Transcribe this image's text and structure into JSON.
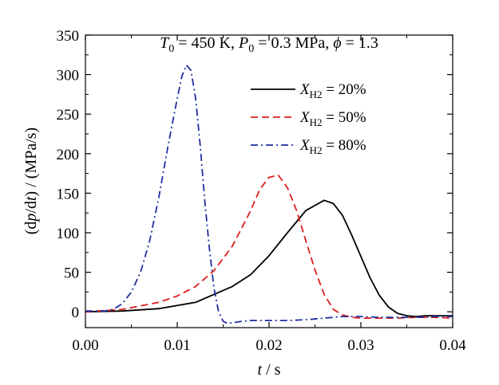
{
  "chart_data": {
    "type": "line",
    "title_parts": {
      "t_sym": "T",
      "t_sub": "0",
      "t_rest": " = 450 K, ",
      "p_sym": "P",
      "p_sub": "0",
      "p_rest": " = 0.3 MPa, ",
      "phi_sym": "ϕ",
      "phi_rest": " = 1.3"
    },
    "xlabel_parts": {
      "sym": "t",
      "rest": " / s"
    },
    "ylabel_parts": {
      "pre": "(d",
      "sym1": "p",
      "mid": "/d",
      "sym2": "t",
      "rest": ") / (MPa/s)"
    },
    "xlim": [
      0,
      0.04
    ],
    "ylim": [
      -20,
      350
    ],
    "xticks": [
      "0.00",
      "0.01",
      "0.02",
      "0.03",
      "0.04"
    ],
    "yticks": [
      "0",
      "50",
      "100",
      "150",
      "200",
      "250",
      "300",
      "350"
    ],
    "legend_position": "top-right",
    "series": [
      {
        "name_sym": "X",
        "name_sub": "H2",
        "name_rest": " = 20%",
        "color": "#000000",
        "dash": "solid",
        "x": [
          0,
          0.004,
          0.008,
          0.012,
          0.016,
          0.018,
          0.02,
          0.022,
          0.024,
          0.026,
          0.027,
          0.028,
          0.029,
          0.03,
          0.031,
          0.032,
          0.033,
          0.034,
          0.035,
          0.036,
          0.037,
          0.038,
          0.039,
          0.04
        ],
        "y": [
          0,
          1,
          4,
          12,
          32,
          47,
          71,
          100,
          128,
          141,
          137,
          122,
          97,
          70,
          43,
          21,
          6,
          -2,
          -5,
          -6,
          -5,
          -5,
          -5,
          -5
        ]
      },
      {
        "name_sym": "X",
        "name_sub": "H2",
        "name_rest": " = 50%",
        "color": "#dd1c1c",
        "dash": "dashed",
        "x": [
          0,
          0.004,
          0.008,
          0.01,
          0.012,
          0.014,
          0.016,
          0.018,
          0.019,
          0.02,
          0.021,
          0.022,
          0.023,
          0.024,
          0.025,
          0.026,
          0.027,
          0.028,
          0.029,
          0.03,
          0.032,
          0.034,
          0.036,
          0.038,
          0.04
        ],
        "y": [
          0,
          3,
          12,
          20,
          32,
          52,
          83,
          128,
          155,
          170,
          173,
          157,
          128,
          90,
          53,
          22,
          3,
          -4,
          -7,
          -8,
          -8,
          -8,
          -7,
          -7,
          -8
        ]
      },
      {
        "name_sym": "X",
        "name_sub": "H2",
        "name_rest": " = 80%",
        "color": "#1f2fa0",
        "dash": "dashdot",
        "x": [
          0,
          0.002,
          0.003,
          0.004,
          0.005,
          0.006,
          0.007,
          0.008,
          0.009,
          0.01,
          0.0105,
          0.011,
          0.0115,
          0.012,
          0.0125,
          0.013,
          0.0135,
          0.014,
          0.0145,
          0.015,
          0.0155,
          0.016,
          0.017,
          0.018,
          0.02,
          0.022,
          0.024,
          0.026,
          0.028,
          0.03,
          0.032,
          0.034,
          0.036,
          0.038,
          0.04
        ],
        "y": [
          1,
          1,
          3,
          10,
          25,
          50,
          90,
          145,
          210,
          270,
          298,
          312,
          305,
          270,
          210,
          140,
          80,
          30,
          0,
          -12,
          -15,
          -14,
          -12,
          -11,
          -11,
          -11,
          -10,
          -8,
          -6,
          -6,
          -7,
          -7,
          -7,
          -6,
          -6
        ]
      }
    ]
  }
}
